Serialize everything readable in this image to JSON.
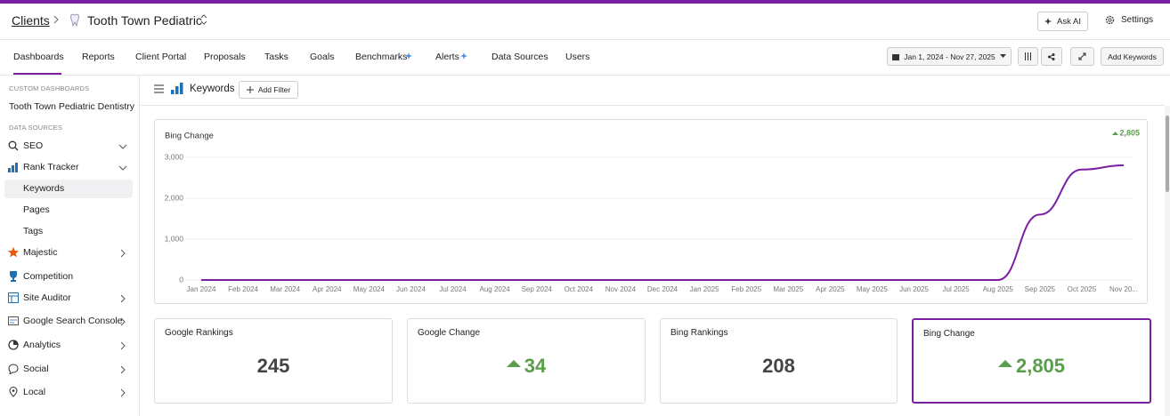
{
  "header": {
    "breadcrumb": "Clients",
    "client": "Tooth Town Pediatric",
    "ask_ai": "Ask AI",
    "settings": "Settings"
  },
  "tabs": [
    "Dashboards",
    "Reports",
    "Client Portal",
    "Proposals",
    "Tasks",
    "Goals",
    "Benchmarks",
    "Alerts",
    "Data Sources",
    "Users"
  ],
  "toolbar": {
    "date_range": "Jan 1, 2024 - Nov 27, 2025",
    "add_keywords": "Add Keywords"
  },
  "sidebar": {
    "custom_heading": "CUSTOM DASHBOARDS",
    "custom_items": [
      "Tooth Town Pediatric Dentistry"
    ],
    "sources_heading": "DATA SOURCES",
    "items": [
      "SEO",
      "Rank Tracker",
      "Keywords",
      "Pages",
      "Tags",
      "Majestic",
      "Competition",
      "Site Auditor",
      "Google Search Console",
      "Analytics",
      "Social",
      "Local"
    ]
  },
  "page": {
    "title": "Keywords",
    "add_filter": "Add Filter"
  },
  "chart_data": {
    "type": "line",
    "title": "Bing Change",
    "badge": "2,805",
    "color": "#7b1fa2",
    "grid": true,
    "x": [
      "Jan 2024",
      "Feb 2024",
      "Mar 2024",
      "Apr 2024",
      "May 2024",
      "Jun 2024",
      "Jul 2024",
      "Aug 2024",
      "Sep 2024",
      "Oct 2024",
      "Nov 2024",
      "Dec 2024",
      "Jan 2025",
      "Feb 2025",
      "Mar 2025",
      "Apr 2025",
      "May 2025",
      "Jun 2025",
      "Jul 2025",
      "Aug 2025",
      "Sep 2025",
      "Oct 2025",
      "Nov 20..."
    ],
    "values": [
      0,
      0,
      0,
      0,
      0,
      0,
      0,
      0,
      0,
      0,
      0,
      0,
      0,
      0,
      0,
      0,
      0,
      0,
      0,
      0,
      1600,
      2700,
      2805
    ],
    "ylim": [
      0,
      3000
    ],
    "yticks": [
      0,
      {
        "value": 1000,
        "label": "1,000"
      },
      {
        "value": 2000,
        "label": "2,000"
      },
      {
        "value": 3000,
        "label": "3,000"
      }
    ]
  },
  "cards": [
    {
      "title": "Google Rankings",
      "value": "245"
    },
    {
      "title": "Google Change",
      "value": "34"
    },
    {
      "title": "Bing Rankings",
      "value": "208"
    },
    {
      "title": "Bing Change",
      "value": "2,805"
    }
  ]
}
